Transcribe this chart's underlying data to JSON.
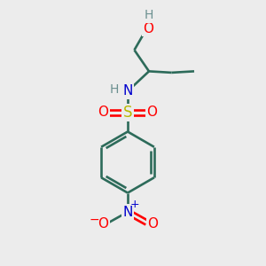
{
  "bg_color": "#ececec",
  "bond_color": "#2d6b5a",
  "atom_colors": {
    "O": "#ff0000",
    "N": "#0000cd",
    "S": "#b8b800",
    "H": "#6b9090",
    "C": "#2d6b5a"
  },
  "figsize": [
    3.0,
    3.0
  ],
  "dpi": 100
}
